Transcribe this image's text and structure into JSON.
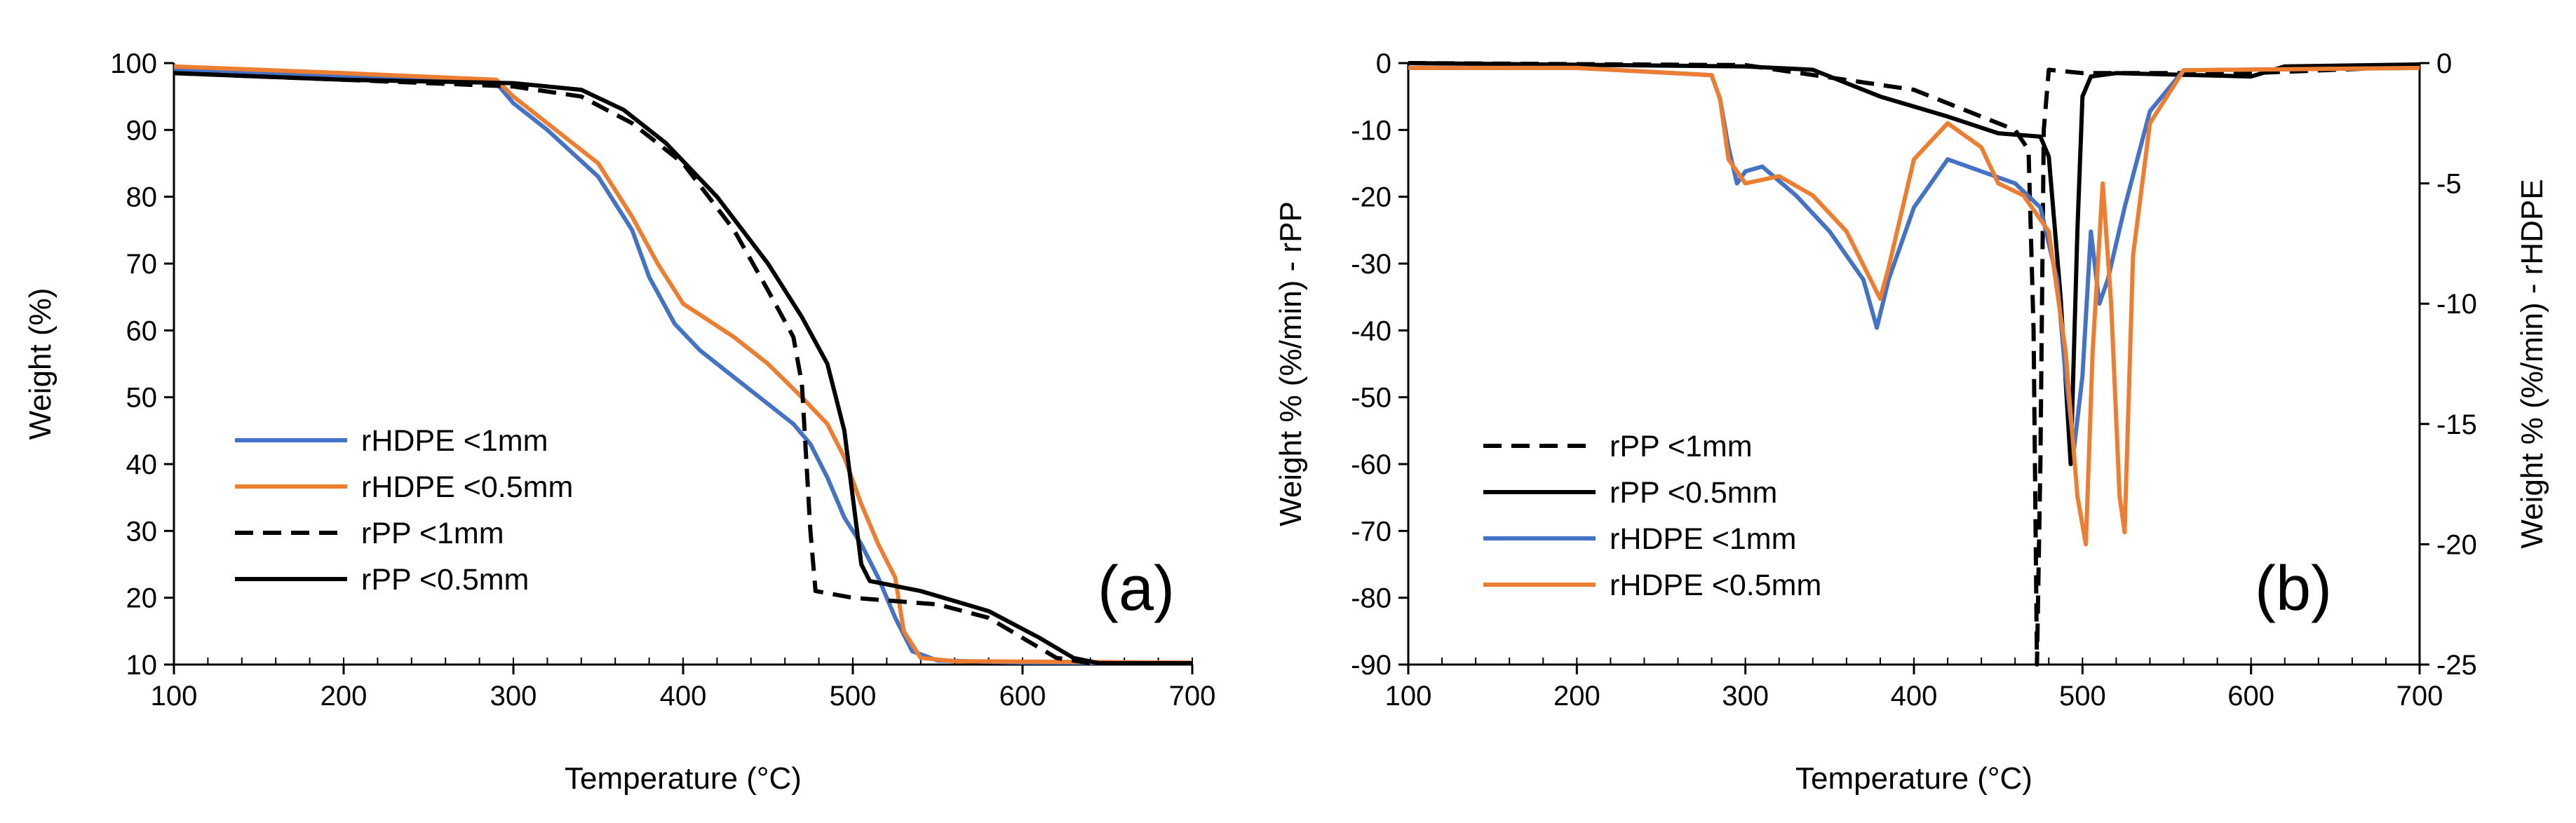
{
  "colors": {
    "blue": "#4472C4",
    "orange": "#ED7D31",
    "black": "#000000"
  },
  "chart_data": [
    {
      "id": "a",
      "type": "line",
      "panel_label": "(a)",
      "xlabel": "Temperature (°C)",
      "ylabel": "Weight  (%)",
      "xlim": [
        100,
        700
      ],
      "ylim": [
        10,
        100
      ],
      "xticks": [
        100,
        200,
        300,
        400,
        500,
        600,
        700
      ],
      "yticks": [
        10,
        20,
        30,
        40,
        50,
        60,
        70,
        80,
        90,
        100
      ],
      "x_minor_step": 20,
      "legend_position": "center-left",
      "series": [
        {
          "name": "rHDPE <1mm",
          "color": "blue",
          "dash": "solid",
          "axis": "left",
          "points": [
            [
              100,
              99
            ],
            [
              200,
              98
            ],
            [
              290,
              97
            ],
            [
              300,
              94
            ],
            [
              320,
              90
            ],
            [
              350,
              83
            ],
            [
              370,
              75
            ],
            [
              380,
              68
            ],
            [
              395,
              61
            ],
            [
              410,
              57
            ],
            [
              430,
              53
            ],
            [
              450,
              49
            ],
            [
              465,
              46
            ],
            [
              475,
              43
            ],
            [
              485,
              38
            ],
            [
              495,
              32
            ],
            [
              505,
              28
            ],
            [
              515,
              23
            ],
            [
              525,
              17
            ],
            [
              535,
              12
            ],
            [
              550,
              10.6
            ],
            [
              600,
              10.3
            ],
            [
              700,
              10.2
            ]
          ]
        },
        {
          "name": "rHDPE <0.5mm",
          "color": "orange",
          "dash": "solid",
          "axis": "left",
          "points": [
            [
              100,
              99.5
            ],
            [
              200,
              98.5
            ],
            [
              290,
              97.5
            ],
            [
              300,
              95
            ],
            [
              320,
              91
            ],
            [
              350,
              85
            ],
            [
              370,
              77
            ],
            [
              385,
              70
            ],
            [
              400,
              64
            ],
            [
              415,
              61.5
            ],
            [
              430,
              59
            ],
            [
              450,
              55
            ],
            [
              470,
              50
            ],
            [
              485,
              46
            ],
            [
              495,
              41
            ],
            [
              505,
              34
            ],
            [
              515,
              28
            ],
            [
              525,
              23
            ],
            [
              530,
              15
            ],
            [
              540,
              11
            ],
            [
              560,
              10.5
            ],
            [
              700,
              10.3
            ]
          ]
        },
        {
          "name": "rPP <1mm",
          "color": "black",
          "dash": "dashed",
          "axis": "left",
          "points": [
            [
              100,
              98.5
            ],
            [
              200,
              97.5
            ],
            [
              300,
              96.5
            ],
            [
              340,
              95
            ],
            [
              370,
              91
            ],
            [
              400,
              85
            ],
            [
              430,
              75
            ],
            [
              450,
              66
            ],
            [
              465,
              59
            ],
            [
              470,
              52
            ],
            [
              475,
              30
            ],
            [
              478,
              21
            ],
            [
              500,
              20
            ],
            [
              550,
              19
            ],
            [
              580,
              17
            ],
            [
              600,
              14
            ],
            [
              620,
              11
            ],
            [
              640,
              10.2
            ],
            [
              700,
              10.2
            ]
          ]
        },
        {
          "name": "rPP <0.5mm",
          "color": "black",
          "dash": "solid",
          "axis": "left",
          "points": [
            [
              100,
              98.5
            ],
            [
              200,
              97.5
            ],
            [
              300,
              97
            ],
            [
              340,
              96
            ],
            [
              365,
              93
            ],
            [
              390,
              88
            ],
            [
              420,
              80
            ],
            [
              450,
              70
            ],
            [
              470,
              62
            ],
            [
              485,
              55
            ],
            [
              495,
              45
            ],
            [
              500,
              35
            ],
            [
              505,
              25
            ],
            [
              510,
              22.5
            ],
            [
              540,
              21
            ],
            [
              580,
              18
            ],
            [
              610,
              14
            ],
            [
              630,
              11
            ],
            [
              645,
              10.2
            ],
            [
              700,
              10.2
            ]
          ]
        }
      ],
      "annotations": []
    },
    {
      "id": "b",
      "type": "line",
      "panel_label": "(b)",
      "xlabel": "Temperature (°C)",
      "ylabel": "Weight % (%/min) - rPP",
      "y2label": "Weight % (%/min) - rHDPE",
      "xlim": [
        100,
        700
      ],
      "ylim": [
        -90,
        0
      ],
      "y2lim": [
        -25,
        0
      ],
      "xticks": [
        100,
        200,
        300,
        400,
        500,
        600,
        700
      ],
      "yticks": [
        0,
        -10,
        -20,
        -30,
        -40,
        -50,
        -60,
        -70,
        -80,
        -90
      ],
      "y2ticks": [
        0,
        -5,
        -10,
        -15,
        -20,
        -25
      ],
      "x_minor_step": 20,
      "legend_position": "bottom-left",
      "series": [
        {
          "name": "rPP <1mm",
          "color": "black",
          "dash": "dashed",
          "axis": "left",
          "points": [
            [
              100,
              0
            ],
            [
              300,
              -0.3
            ],
            [
              400,
              -4
            ],
            [
              440,
              -8
            ],
            [
              460,
              -10
            ],
            [
              468,
              -13
            ],
            [
              471,
              -40
            ],
            [
              473,
              -90
            ],
            [
              475,
              -60
            ],
            [
              477,
              -10
            ],
            [
              480,
              -1
            ],
            [
              500,
              -1.5
            ],
            [
              600,
              -1.5
            ],
            [
              700,
              -0.5
            ]
          ]
        },
        {
          "name": "rPP <0.5mm",
          "color": "black",
          "dash": "solid",
          "axis": "left",
          "points": [
            [
              100,
              0
            ],
            [
              300,
              -0.5
            ],
            [
              340,
              -1
            ],
            [
              380,
              -5
            ],
            [
              420,
              -8
            ],
            [
              450,
              -10.5
            ],
            [
              475,
              -11
            ],
            [
              480,
              -14
            ],
            [
              487,
              -35
            ],
            [
              493,
              -60
            ],
            [
              497,
              -25
            ],
            [
              500,
              -5
            ],
            [
              505,
              -2
            ],
            [
              520,
              -1.5
            ],
            [
              600,
              -2
            ],
            [
              620,
              -0.5
            ],
            [
              700,
              -0.2
            ]
          ]
        },
        {
          "name": "rHDPE <1mm",
          "color": "blue",
          "dash": "solid",
          "axis": "right",
          "points": [
            [
              100,
              -0.2
            ],
            [
              200,
              -0.2
            ],
            [
              280,
              -0.5
            ],
            [
              285,
              -1.5
            ],
            [
              290,
              -3.5
            ],
            [
              295,
              -5
            ],
            [
              300,
              -4.5
            ],
            [
              310,
              -4.3
            ],
            [
              330,
              -5.5
            ],
            [
              350,
              -7
            ],
            [
              370,
              -9
            ],
            [
              378,
              -11
            ],
            [
              385,
              -9
            ],
            [
              400,
              -6
            ],
            [
              420,
              -4
            ],
            [
              440,
              -4.5
            ],
            [
              460,
              -5
            ],
            [
              475,
              -6
            ],
            [
              485,
              -9
            ],
            [
              490,
              -13
            ],
            [
              495,
              -16
            ],
            [
              500,
              -13
            ],
            [
              505,
              -7
            ],
            [
              510,
              -10
            ],
            [
              515,
              -9
            ],
            [
              525,
              -6
            ],
            [
              540,
              -2
            ],
            [
              560,
              -0.3
            ],
            [
              700,
              -0.2
            ]
          ]
        },
        {
          "name": "rHDPE <0.5mm",
          "color": "orange",
          "dash": "solid",
          "axis": "right",
          "points": [
            [
              100,
              -0.2
            ],
            [
              200,
              -0.2
            ],
            [
              280,
              -0.5
            ],
            [
              285,
              -1.5
            ],
            [
              290,
              -4
            ],
            [
              300,
              -5
            ],
            [
              320,
              -4.7
            ],
            [
              340,
              -5.5
            ],
            [
              360,
              -7
            ],
            [
              380,
              -9.8
            ],
            [
              385,
              -8.5
            ],
            [
              400,
              -4
            ],
            [
              420,
              -2.5
            ],
            [
              440,
              -3.5
            ],
            [
              450,
              -5
            ],
            [
              465,
              -5.5
            ],
            [
              480,
              -7
            ],
            [
              490,
              -12
            ],
            [
              497,
              -18
            ],
            [
              502,
              -20
            ],
            [
              506,
              -12
            ],
            [
              512,
              -5
            ],
            [
              517,
              -10
            ],
            [
              522,
              -18
            ],
            [
              525,
              -19.5
            ],
            [
              530,
              -8
            ],
            [
              540,
              -2.5
            ],
            [
              560,
              -0.3
            ],
            [
              700,
              -0.2
            ]
          ]
        }
      ],
      "annotations": []
    }
  ]
}
